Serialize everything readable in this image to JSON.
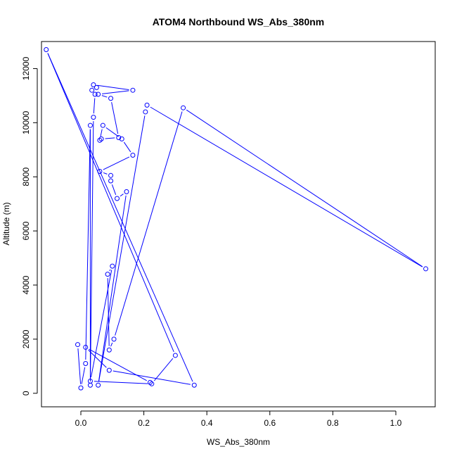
{
  "chart_data": {
    "type": "line",
    "title": "ATOM4 Northbound WS_Abs_380nm",
    "xlabel": "WS_Abs_380nm",
    "ylabel": "Altitude (m)",
    "xlim": [
      -0.125,
      1.125
    ],
    "ylim": [
      -500,
      13000
    ],
    "xticks": [
      0.0,
      0.2,
      0.4,
      0.6,
      0.8,
      1.0
    ],
    "xtick_labels": [
      "0.0",
      "0.2",
      "0.4",
      "0.6",
      "0.8",
      "1.0"
    ],
    "yticks": [
      0,
      2000,
      4000,
      6000,
      8000,
      10000,
      12000
    ],
    "ytick_labels": [
      "0",
      "2000",
      "4000",
      "6000",
      "8000",
      "10000",
      "12000"
    ],
    "grid": false,
    "legend": "none",
    "series_color": "#0000ff",
    "marker": "open-circle",
    "series": [
      {
        "points": [
          [
            -0.01,
            1800
          ],
          [
            0.0,
            200
          ],
          [
            0.015,
            1100
          ],
          [
            0.03,
            9900
          ],
          [
            0.03,
            300
          ],
          [
            0.04,
            10200
          ],
          [
            0.045,
            11050
          ],
          [
            0.05,
            11300
          ],
          [
            0.035,
            11200
          ],
          [
            0.04,
            11400
          ],
          [
            0.165,
            11200
          ],
          [
            0.055,
            11050
          ],
          [
            0.095,
            10900
          ],
          [
            0.12,
            9450
          ],
          [
            0.065,
            9400
          ],
          [
            0.06,
            9350
          ],
          [
            0.07,
            9900
          ],
          [
            0.13,
            9400
          ],
          [
            0.165,
            8800
          ],
          [
            0.06,
            8200
          ],
          [
            0.095,
            8050
          ],
          [
            0.095,
            7850
          ],
          [
            0.115,
            7200
          ],
          [
            0.145,
            7450
          ],
          [
            0.055,
            300
          ],
          [
            0.205,
            10400
          ],
          [
            0.21,
            10650
          ],
          [
            1.095,
            4600
          ],
          [
            0.325,
            10550
          ],
          [
            0.105,
            2000
          ],
          [
            0.09,
            1600
          ],
          [
            0.085,
            4400
          ],
          [
            0.1,
            4700
          ],
          [
            0.03,
            450
          ],
          [
            0.225,
            350
          ],
          [
            0.3,
            1400
          ],
          [
            -0.11,
            12700
          ],
          [
            0.36,
            300
          ],
          [
            0.09,
            850
          ],
          [
            0.015,
            1700
          ],
          [
            0.22,
            400
          ]
        ]
      }
    ]
  }
}
